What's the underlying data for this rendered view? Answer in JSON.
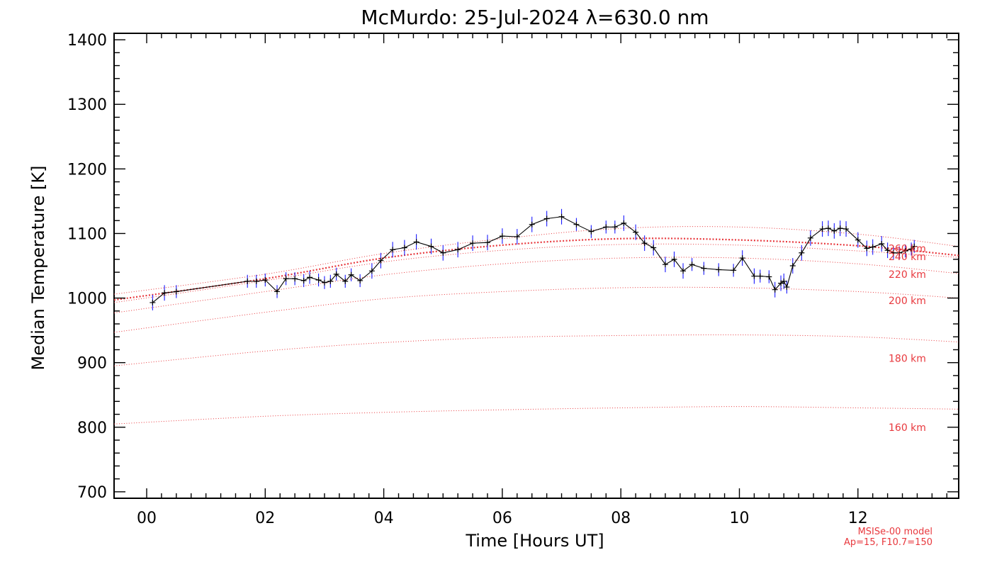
{
  "chart_data": {
    "type": "line",
    "title": "McMurdo: 25-Jul-2024 λ=630.0 nm",
    "xlabel": "Time [Hours UT]",
    "ylabel": "Median Temperature [K]",
    "xlim": [
      -0.55,
      13.7
    ],
    "ylim": [
      690,
      1410
    ],
    "x_ticks": [
      0,
      2,
      4,
      6,
      8,
      10,
      12
    ],
    "x_tick_labels": [
      "00",
      "02",
      "04",
      "06",
      "08",
      "10",
      "12"
    ],
    "y_ticks": [
      700,
      800,
      900,
      1000,
      1100,
      1200,
      1300,
      1400
    ],
    "y_tick_labels": [
      "700",
      "800",
      "900",
      "1000",
      "1100",
      "1200",
      "1300",
      "1400"
    ],
    "grid": false,
    "colors": {
      "measurement": "#000000",
      "error_bar": "#1a1aff",
      "model": "#e8383d"
    },
    "series": [
      {
        "x": [
          0.1,
          0.3,
          0.5,
          1.7,
          1.85,
          2.0,
          2.2,
          2.35,
          2.5,
          2.65,
          2.75,
          2.9,
          3.0,
          3.1,
          3.2,
          3.35,
          3.45,
          3.6,
          3.8,
          3.95,
          4.15,
          4.35,
          4.55,
          4.8,
          5.0,
          5.25,
          5.5,
          5.75,
          6.0,
          6.25,
          6.5,
          6.75,
          7.0,
          7.25,
          7.5,
          7.75,
          7.9,
          8.05,
          8.25,
          8.4,
          8.55,
          8.75,
          8.9,
          9.05,
          9.2,
          9.4,
          9.65,
          9.9,
          10.05,
          10.25,
          10.35,
          10.5,
          10.6,
          10.7,
          10.75,
          10.8,
          10.9,
          11.05,
          11.2,
          11.4,
          11.5,
          11.6,
          11.7,
          11.8,
          12.0,
          12.15,
          12.25,
          12.4,
          12.5,
          12.6,
          12.7,
          12.8,
          12.9,
          12.95
        ],
        "values": [
          993,
          1008,
          1010,
          1026,
          1026,
          1028,
          1010,
          1030,
          1030,
          1027,
          1032,
          1028,
          1024,
          1026,
          1037,
          1026,
          1036,
          1027,
          1042,
          1058,
          1075,
          1078,
          1087,
          1080,
          1070,
          1075,
          1085,
          1086,
          1096,
          1095,
          1114,
          1123,
          1126,
          1114,
          1103,
          1110,
          1110,
          1116,
          1102,
          1085,
          1078,
          1052,
          1060,
          1042,
          1052,
          1046,
          1044,
          1043,
          1062,
          1034,
          1034,
          1033,
          1013,
          1023,
          1026,
          1017,
          1050,
          1070,
          1093,
          1107,
          1108,
          1104,
          1108,
          1107,
          1090,
          1077,
          1079,
          1084,
          1074,
          1070,
          1070,
          1073,
          1076,
          1080
        ],
        "errors": [
          12,
          12,
          10,
          10,
          10,
          10,
          10,
          10,
          10,
          10,
          10,
          10,
          10,
          10,
          10,
          10,
          10,
          10,
          12,
          12,
          12,
          12,
          12,
          12,
          12,
          12,
          12,
          12,
          12,
          12,
          12,
          12,
          12,
          10,
          10,
          10,
          10,
          12,
          12,
          12,
          12,
          12,
          12,
          12,
          10,
          10,
          10,
          10,
          12,
          12,
          10,
          10,
          12,
          12,
          12,
          10,
          12,
          12,
          12,
          12,
          12,
          12,
          12,
          12,
          12,
          12,
          12,
          12,
          12,
          10,
          10,
          10,
          10,
          10
        ]
      }
    ],
    "model_curves": [
      {
        "label": "160 km",
        "x": [
          -0.55,
          2,
          4,
          6,
          8,
          10,
          12,
          13.7
        ],
        "values": [
          805,
          817,
          823,
          827,
          830,
          832,
          830,
          828
        ]
      },
      {
        "label": "180 km",
        "x": [
          -0.55,
          2,
          4,
          6,
          8,
          10,
          12,
          13.7
        ],
        "values": [
          895,
          918,
          931,
          939,
          942,
          943,
          940,
          932
        ]
      },
      {
        "label": "200 km",
        "x": [
          -0.55,
          2,
          4,
          6,
          8,
          10,
          12,
          13.7
        ],
        "values": [
          947,
          978,
          999,
          1010,
          1016,
          1016,
          1010,
          1000
        ]
      },
      {
        "label": "220 km",
        "x": [
          -0.55,
          2,
          4,
          6,
          8,
          10,
          12,
          13.7
        ],
        "values": [
          977,
          1010,
          1036,
          1053,
          1062,
          1062,
          1053,
          1038
        ]
      },
      {
        "label": "240 km",
        "x": [
          -0.55,
          2,
          4,
          6,
          8,
          10,
          12,
          13.7
        ],
        "values": [
          993,
          1027,
          1056,
          1074,
          1083,
          1082,
          1073,
          1063
        ]
      },
      {
        "label": "260 km",
        "x": [
          -0.55,
          2,
          4,
          6,
          8,
          10,
          12,
          13.7
        ],
        "values": [
          997,
          1030,
          1062,
          1082,
          1092,
          1090,
          1081,
          1066
        ],
        "emphasized": true
      },
      {
        "label": "",
        "x": [
          -0.55,
          2,
          4,
          6,
          8,
          10,
          12,
          13.7
        ],
        "values": [
          1006,
          1037,
          1069,
          1092,
          1108,
          1110,
          1099,
          1080
        ]
      }
    ],
    "curve_label_texts": [
      "160 km",
      "180 km",
      "200 km",
      "220 km",
      "240 km",
      "260 km"
    ],
    "model_note": [
      "MSISe-00 model",
      "Ap=15, F10.7=150"
    ]
  }
}
